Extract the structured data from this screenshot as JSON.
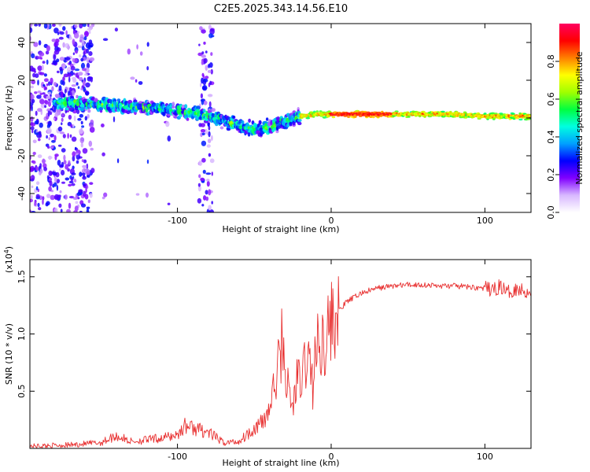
{
  "title": "C2E5.2025.343.14.56.E10",
  "chart_data": [
    {
      "type": "heatmap",
      "name": "spectrogram",
      "xlabel": "Height of straight line (km)",
      "ylabel": "Frequency (Hz)",
      "xlim": [
        -196,
        130
      ],
      "ylim": [
        -50,
        50
      ],
      "xticks": [
        -100,
        0,
        100
      ],
      "yticks": [
        40,
        20,
        0,
        -20,
        -40
      ],
      "colorbar": {
        "label": "Normalized spectral amplitude",
        "range": [
          0,
          1
        ],
        "ticks": [
          0.0,
          0.2,
          0.4,
          0.6,
          0.8
        ],
        "stops": [
          "#ffffff",
          "#d8b8ff",
          "#8000ff",
          "#0000ff",
          "#00a0ff",
          "#00ffe0",
          "#00ff40",
          "#a0ff00",
          "#ffff00",
          "#ff8000",
          "#ff0000",
          "#ff0060"
        ]
      },
      "ridge_frequency_hz": {
        "x": [
          -170,
          -150,
          -130,
          -110,
          -90,
          -75,
          -60,
          -50,
          -40,
          -30,
          -20,
          -10,
          0,
          20,
          40,
          60,
          80,
          100,
          120,
          130
        ],
        "y": [
          8,
          7,
          6,
          5,
          3,
          0,
          -4,
          -6,
          -5,
          -2,
          1,
          2,
          2,
          2,
          2,
          2,
          2,
          1,
          1,
          1
        ]
      }
    },
    {
      "type": "line",
      "name": "snr",
      "xlabel": "Height of straight line (km)",
      "ylabel": "SNR (10 * v/v)",
      "multiplier": "(x10",
      "multiplier_exp": "4",
      "multiplier_close": ")",
      "xlim": [
        -196,
        130
      ],
      "ylim": [
        0,
        1.65
      ],
      "xticks": [
        -100,
        0,
        100
      ],
      "yticks": [
        "0.5",
        "1.0",
        "1.5"
      ],
      "color": "#e83030",
      "x": [
        -196,
        -170,
        -150,
        -140,
        -130,
        -110,
        -100,
        -95,
        -90,
        -80,
        -70,
        -60,
        -50,
        -45,
        -40,
        -35,
        -32,
        -28,
        -25,
        -22,
        -20,
        -18,
        -16,
        -14,
        -12,
        -10,
        -8,
        -5,
        0,
        5,
        10,
        20,
        30,
        40,
        50,
        60,
        70,
        80,
        90,
        100,
        105,
        110,
        115,
        120,
        130
      ],
      "y": [
        0.02,
        0.03,
        0.05,
        0.11,
        0.06,
        0.09,
        0.12,
        0.2,
        0.18,
        0.14,
        0.05,
        0.06,
        0.18,
        0.22,
        0.35,
        0.65,
        0.95,
        0.5,
        0.35,
        0.65,
        0.5,
        0.7,
        0.8,
        0.75,
        0.55,
        0.85,
        0.9,
        0.95,
        1.1,
        1.2,
        1.28,
        1.36,
        1.4,
        1.42,
        1.43,
        1.43,
        1.42,
        1.42,
        1.41,
        1.4,
        1.38,
        1.42,
        1.36,
        1.4,
        1.36
      ]
    }
  ]
}
